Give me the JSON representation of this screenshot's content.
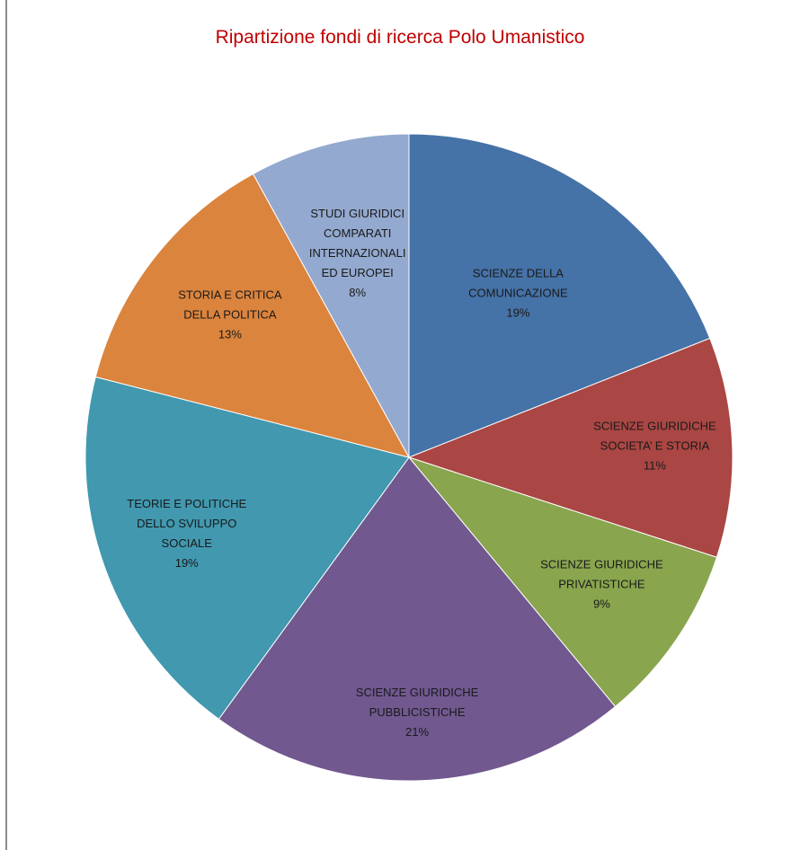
{
  "chart_data": {
    "type": "pie",
    "title": "Ripartizione fondi di ricerca Polo Umanistico",
    "slices": [
      {
        "lines": [
          "SCIENZE DELLA",
          "COMUNICAZIONE"
        ],
        "pct_label": "19%",
        "value": 19,
        "color": "#4572a7"
      },
      {
        "lines": [
          "SCIENZE GIURIDICHE",
          "SOCIETA’ E STORIA"
        ],
        "pct_label": "11%",
        "value": 11,
        "color": "#aa4643"
      },
      {
        "lines": [
          "SCIENZE GIURIDICHE",
          "PRIVATISTICHE"
        ],
        "pct_label": "9%",
        "value": 9,
        "color": "#89a54e"
      },
      {
        "lines": [
          "SCIENZE GIURIDICHE",
          "PUBBLICISTICHE"
        ],
        "pct_label": "21%",
        "value": 21,
        "color": "#71588f"
      },
      {
        "lines": [
          "TEORIE E POLITICHE",
          "DELLO SVILUPPO",
          "SOCIALE"
        ],
        "pct_label": "19%",
        "value": 19,
        "color": "#4198af"
      },
      {
        "lines": [
          "STORIA E CRITICA",
          "DELLA POLITICA"
        ],
        "pct_label": "13%",
        "value": 13,
        "color": "#db843d"
      },
      {
        "lines": [
          "STUDI GIURIDICI",
          "COMPARATI",
          "INTERNAZIONALI",
          "ED EUROPEI"
        ],
        "pct_label": "8%",
        "value": 8,
        "color": "#93a9cf"
      }
    ]
  }
}
